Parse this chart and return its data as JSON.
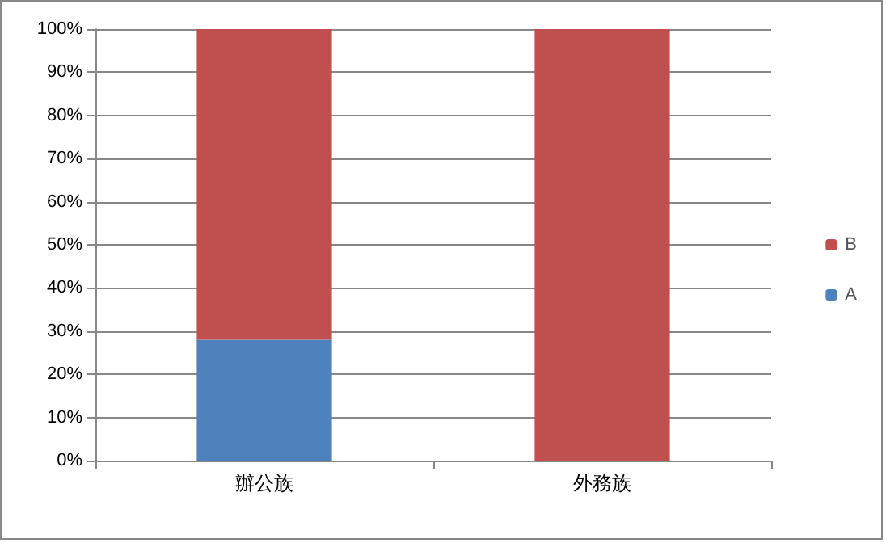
{
  "chart_data": {
    "type": "bar",
    "stacked": true,
    "categories": [
      "辦公族",
      "外務族"
    ],
    "series": [
      {
        "name": "A",
        "color": "#4f81bd",
        "values": [
          28,
          0
        ]
      },
      {
        "name": "B",
        "color": "#c0504d",
        "values": [
          72,
          100
        ]
      }
    ],
    "ylim": [
      0,
      100
    ],
    "yticks": [
      {
        "value": 0,
        "label": "0%"
      },
      {
        "value": 10,
        "label": "10%"
      },
      {
        "value": 20,
        "label": "20%"
      },
      {
        "value": 30,
        "label": "30%"
      },
      {
        "value": 40,
        "label": "40%"
      },
      {
        "value": 50,
        "label": "50%"
      },
      {
        "value": 60,
        "label": "60%"
      },
      {
        "value": 70,
        "label": "70%"
      },
      {
        "value": 80,
        "label": "80%"
      },
      {
        "value": 90,
        "label": "90%"
      },
      {
        "value": 100,
        "label": "100%"
      }
    ],
    "grid": "y",
    "legend": "right"
  }
}
